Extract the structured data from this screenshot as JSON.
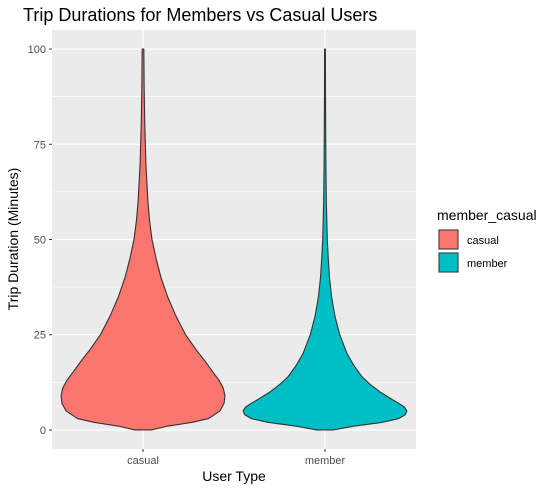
{
  "chart_data": {
    "type": "violin",
    "title": "Trip Durations for Members vs Casual Users",
    "xlabel": "User Type",
    "ylabel": "Trip Duration (Minutes)",
    "categories": [
      "casual",
      "member"
    ],
    "ylim": [
      -5,
      105
    ],
    "yticks": [
      0,
      25,
      50,
      75,
      100
    ],
    "grid": true,
    "legend": {
      "title": "member_casual",
      "placement": "right",
      "entries": [
        {
          "label": "casual",
          "color": "#F8766D"
        },
        {
          "label": "member",
          "color": "#00BFC4"
        }
      ]
    },
    "series": [
      {
        "name": "casual",
        "color": "#F8766D",
        "min": 0,
        "max": 100,
        "density_width": [
          [
            0,
            0.1
          ],
          [
            1,
            0.3
          ],
          [
            2,
            0.6
          ],
          [
            3,
            0.8
          ],
          [
            5,
            0.94
          ],
          [
            7,
            0.99
          ],
          [
            9,
            1.0
          ],
          [
            11,
            0.98
          ],
          [
            13,
            0.93
          ],
          [
            15,
            0.86
          ],
          [
            18,
            0.76
          ],
          [
            21,
            0.65
          ],
          [
            25,
            0.52
          ],
          [
            30,
            0.4
          ],
          [
            35,
            0.3
          ],
          [
            40,
            0.22
          ],
          [
            45,
            0.16
          ],
          [
            50,
            0.11
          ],
          [
            55,
            0.08
          ],
          [
            60,
            0.06
          ],
          [
            70,
            0.035
          ],
          [
            80,
            0.022
          ],
          [
            90,
            0.014
          ],
          [
            100,
            0.01
          ]
        ]
      },
      {
        "name": "member",
        "color": "#00BFC4",
        "min": 0,
        "max": 100,
        "density_width": [
          [
            0,
            0.1
          ],
          [
            1,
            0.35
          ],
          [
            2,
            0.7
          ],
          [
            3,
            0.9
          ],
          [
            4,
            0.98
          ],
          [
            5,
            1.0
          ],
          [
            6,
            0.97
          ],
          [
            7,
            0.9
          ],
          [
            8,
            0.82
          ],
          [
            10,
            0.67
          ],
          [
            12,
            0.55
          ],
          [
            14,
            0.45
          ],
          [
            17,
            0.35
          ],
          [
            20,
            0.27
          ],
          [
            25,
            0.18
          ],
          [
            30,
            0.12
          ],
          [
            35,
            0.08
          ],
          [
            40,
            0.055
          ],
          [
            45,
            0.04
          ],
          [
            50,
            0.028
          ],
          [
            60,
            0.016
          ],
          [
            70,
            0.011
          ],
          [
            80,
            0.008
          ],
          [
            90,
            0.006
          ],
          [
            100,
            0.005
          ]
        ]
      }
    ]
  }
}
